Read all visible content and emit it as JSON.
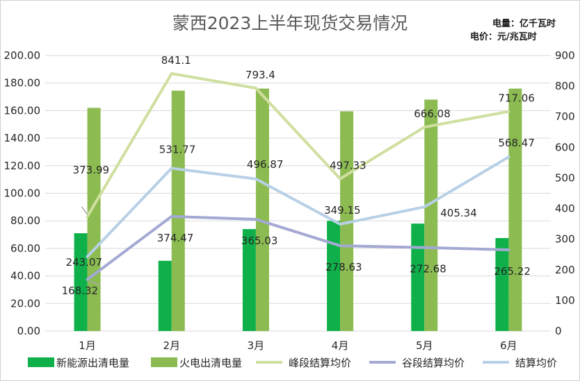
{
  "chart_data": {
    "type": "bar",
    "title": "蒙西2023上半年现货交易情况",
    "unit_lines": [
      "电量：亿千瓦时",
      "电价：元/兆瓦时"
    ],
    "categories": [
      "1月",
      "2月",
      "3月",
      "4月",
      "5月",
      "6月"
    ],
    "y_left": {
      "min": 0,
      "max": 200,
      "step": 20,
      "tick_format": "0.00"
    },
    "y_right": {
      "min": 0,
      "max": 900,
      "step": 100
    },
    "grid": true,
    "legend_position": "bottom",
    "bar_series": [
      {
        "name": "新能源出清电量",
        "axis": "left",
        "color": "#0fb04a",
        "values": [
          71,
          51,
          74,
          80,
          78,
          67.5
        ]
      },
      {
        "name": "火电出清电量",
        "axis": "left",
        "color": "#8cbb52",
        "values": [
          162,
          174.5,
          176,
          159.5,
          168,
          176
        ]
      }
    ],
    "line_series": [
      {
        "name": "峰段结算均价",
        "axis": "right",
        "color": "#cfdf9f",
        "values": [
          373.99,
          841.1,
          793.4,
          497.33,
          666.08,
          717.06
        ],
        "labels": [
          "373.99",
          "841.1",
          "793.4",
          "497.33",
          "666.08",
          "717.06"
        ]
      },
      {
        "name": "谷段结算均价",
        "axis": "right",
        "color": "#a3a9d3",
        "values": [
          168.32,
          374.47,
          365.03,
          278.63,
          272.68,
          265.22
        ],
        "labels": [
          "168.32",
          "374.47",
          "365.03",
          "278.63",
          "272.68",
          "265.22"
        ]
      },
      {
        "name": "结算均价",
        "axis": "right",
        "color": "#b7d0e6",
        "values": [
          243.07,
          531.77,
          496.87,
          349.15,
          405.34,
          568.47
        ],
        "labels": [
          "243.07",
          "531.77",
          "496.87",
          "349.15",
          "405.34",
          "568.47"
        ]
      }
    ]
  }
}
